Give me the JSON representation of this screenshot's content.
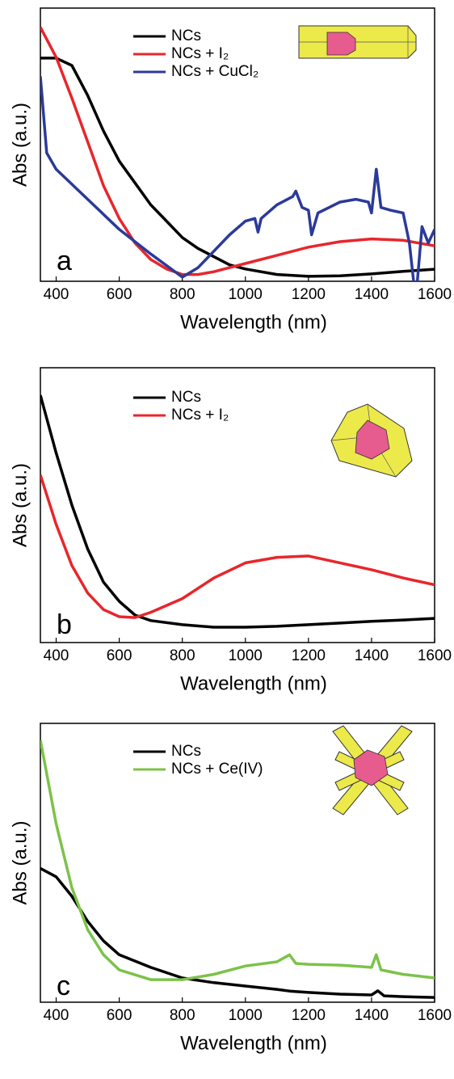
{
  "chart_data": [
    {
      "type": "line",
      "panel_label": "a",
      "x_label": "Wavelength (nm)",
      "y_label": "Abs (a.u.)",
      "xlim": [
        350,
        1600
      ],
      "ylim": [
        0,
        1
      ],
      "xticks": [
        400,
        600,
        800,
        1000,
        1200,
        1400,
        1600
      ],
      "series": [
        {
          "name": "NCs",
          "color": "#000000",
          "x": [
            350,
            400,
            450,
            500,
            550,
            600,
            650,
            700,
            750,
            800,
            850,
            900,
            950,
            1000,
            1100,
            1200,
            1300,
            1400,
            1500,
            1600
          ],
          "values": [
            0.817,
            0.817,
            0.79,
            0.68,
            0.55,
            0.44,
            0.36,
            0.28,
            0.22,
            0.16,
            0.12,
            0.09,
            0.06,
            0.045,
            0.025,
            0.018,
            0.02,
            0.027,
            0.036,
            0.044
          ]
        },
        {
          "name": "NCs + I₂",
          "color": "#e8262b",
          "x": [
            350,
            400,
            450,
            500,
            550,
            600,
            650,
            700,
            750,
            800,
            850,
            900,
            950,
            1000,
            1100,
            1200,
            1300,
            1400,
            1500,
            1600
          ],
          "values": [
            0.93,
            0.82,
            0.67,
            0.51,
            0.35,
            0.23,
            0.14,
            0.08,
            0.045,
            0.025,
            0.025,
            0.035,
            0.05,
            0.065,
            0.095,
            0.125,
            0.145,
            0.155,
            0.15,
            0.13
          ]
        },
        {
          "name": "NCs + CuCl₂",
          "color": "#2b3a9a",
          "x": [
            350,
            370,
            400,
            500,
            600,
            700,
            800,
            850,
            900,
            950,
            1000,
            1030,
            1040,
            1050,
            1100,
            1150,
            1160,
            1180,
            1200,
            1210,
            1230,
            1300,
            1350,
            1390,
            1400,
            1415,
            1430,
            1460,
            1500,
            1520,
            1540,
            1560,
            1580,
            1600
          ],
          "values": [
            0.75,
            0.47,
            0.41,
            0.3,
            0.19,
            0.1,
            0.015,
            0.05,
            0.11,
            0.17,
            0.22,
            0.23,
            0.18,
            0.23,
            0.28,
            0.31,
            0.33,
            0.27,
            0.26,
            0.17,
            0.25,
            0.29,
            0.3,
            0.29,
            0.25,
            0.41,
            0.27,
            0.26,
            0.25,
            0.14,
            -0.07,
            0.2,
            0.14,
            0.19
          ]
        }
      ]
    },
    {
      "type": "line",
      "panel_label": "b",
      "x_label": "Wavelength (nm)",
      "y_label": "Abs (a.u.)",
      "xlim": [
        350,
        1600
      ],
      "ylim": [
        0,
        1
      ],
      "xticks": [
        400,
        600,
        800,
        1000,
        1200,
        1400,
        1600
      ],
      "series": [
        {
          "name": "NCs",
          "color": "#000000",
          "x": [
            350,
            400,
            450,
            500,
            550,
            600,
            650,
            700,
            800,
            900,
            1000,
            1100,
            1200,
            1300,
            1400,
            1500,
            1600
          ],
          "values": [
            0.9,
            0.69,
            0.5,
            0.34,
            0.22,
            0.15,
            0.1,
            0.08,
            0.065,
            0.056,
            0.056,
            0.059,
            0.065,
            0.071,
            0.077,
            0.082,
            0.088
          ]
        },
        {
          "name": "NCs + I₂",
          "color": "#e8262b",
          "x": [
            350,
            400,
            450,
            500,
            550,
            600,
            650,
            700,
            800,
            900,
            1000,
            1100,
            1200,
            1300,
            1400,
            1500,
            1600
          ],
          "values": [
            0.61,
            0.43,
            0.28,
            0.18,
            0.12,
            0.094,
            0.091,
            0.11,
            0.16,
            0.235,
            0.29,
            0.31,
            0.315,
            0.29,
            0.265,
            0.235,
            0.21
          ]
        }
      ]
    },
    {
      "type": "line",
      "panel_label": "c",
      "x_label": "Wavelength (nm)",
      "y_label": "Abs (a.u.)",
      "xlim": [
        350,
        1600
      ],
      "ylim": [
        0,
        1
      ],
      "xticks": [
        400,
        600,
        800,
        1000,
        1200,
        1400,
        1600
      ],
      "series": [
        {
          "name": "NCs",
          "color": "#000000",
          "x": [
            350,
            400,
            450,
            500,
            550,
            600,
            700,
            800,
            900,
            1000,
            1100,
            1140,
            1200,
            1300,
            1400,
            1420,
            1440,
            1500,
            1600
          ],
          "values": [
            0.48,
            0.45,
            0.38,
            0.29,
            0.22,
            0.17,
            0.125,
            0.087,
            0.07,
            0.058,
            0.046,
            0.04,
            0.035,
            0.029,
            0.026,
            0.041,
            0.023,
            0.02,
            0.017
          ]
        },
        {
          "name": "NCs + Ce(IV)",
          "color": "#7cc24a",
          "x": [
            350,
            400,
            450,
            500,
            550,
            600,
            700,
            800,
            900,
            1000,
            1100,
            1140,
            1160,
            1200,
            1300,
            1400,
            1415,
            1430,
            1500,
            1600
          ],
          "values": [
            0.94,
            0.64,
            0.41,
            0.26,
            0.17,
            0.116,
            0.081,
            0.081,
            0.1,
            0.13,
            0.145,
            0.17,
            0.139,
            0.136,
            0.133,
            0.125,
            0.17,
            0.116,
            0.1,
            0.087
          ]
        }
      ]
    }
  ]
}
